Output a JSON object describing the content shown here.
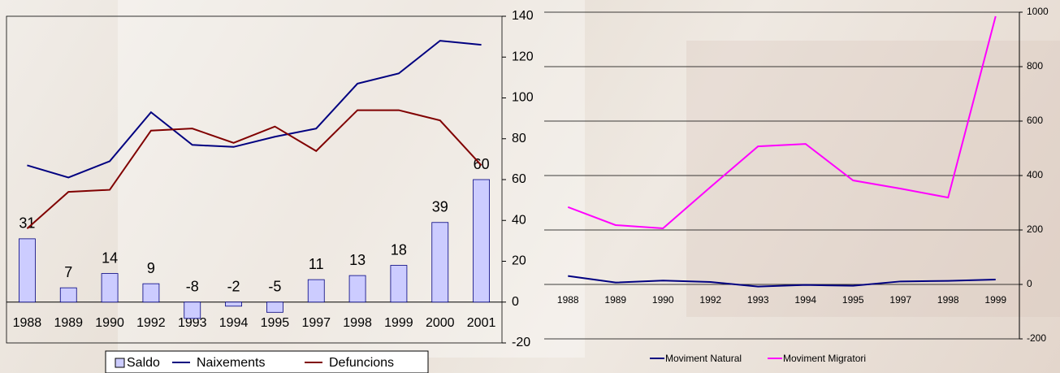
{
  "chart_data": [
    {
      "type": "bar-line",
      "categories": [
        "1988",
        "1989",
        "1990",
        "1992",
        "1993",
        "1994",
        "1995",
        "1997",
        "1998",
        "1999",
        "2000",
        "2001"
      ],
      "series": [
        {
          "name": "Saldo",
          "color": "#ccccff",
          "type": "bar",
          "values": [
            31,
            7,
            14,
            9,
            -8,
            -2,
            -5,
            11,
            13,
            18,
            39,
            60
          ]
        },
        {
          "name": "Naixements",
          "color": "#000080",
          "type": "line",
          "values": [
            67,
            61,
            69,
            93,
            77,
            76,
            81,
            85,
            107,
            112,
            128,
            126
          ]
        },
        {
          "name": "Defuncions",
          "color": "#800000",
          "type": "line",
          "values": [
            36,
            54,
            55,
            84,
            85,
            78,
            86,
            74,
            94,
            94,
            89,
            67
          ]
        }
      ],
      "ylim": [
        -20,
        140
      ],
      "yticks": [
        -20,
        0,
        20,
        40,
        60,
        80,
        100,
        120,
        140
      ]
    },
    {
      "type": "line",
      "categories": [
        "1988",
        "1989",
        "1990",
        "1992",
        "1993",
        "1994",
        "1995",
        "1997",
        "1998",
        "1999"
      ],
      "series": [
        {
          "name": "Moviment Natural",
          "color": "#000080",
          "values": [
            31,
            7,
            14,
            9,
            -8,
            -2,
            -5,
            11,
            13,
            18
          ]
        },
        {
          "name": "Moviment Migratori",
          "color": "#ff00ff",
          "values": [
            284,
            218,
            206,
            358,
            507,
            516,
            382,
            352,
            319,
            985
          ]
        }
      ],
      "ylim": [
        -200,
        1000
      ],
      "yticks": [
        -200,
        0,
        200,
        400,
        600,
        800,
        1000
      ],
      "grid": true
    }
  ]
}
